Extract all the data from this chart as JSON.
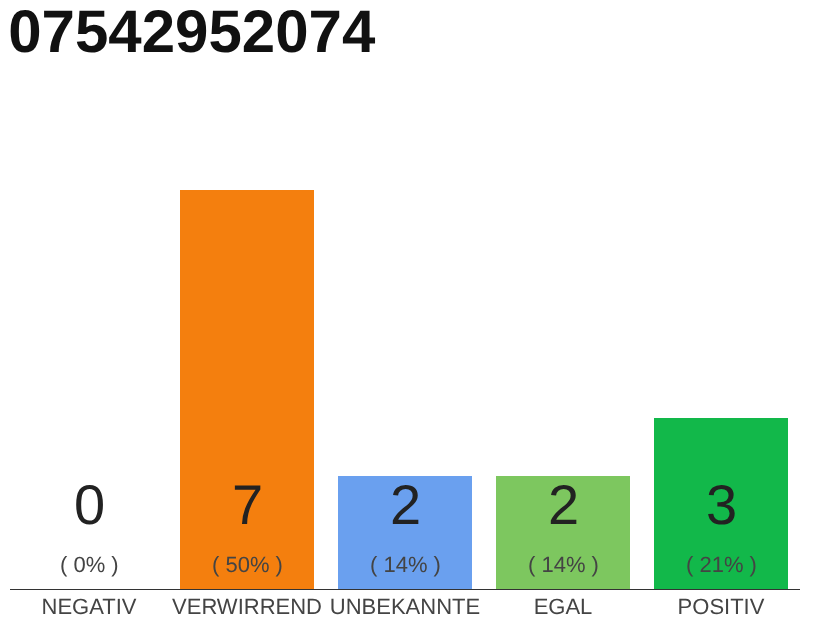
{
  "chart_data": {
    "type": "bar",
    "title": "07542952074",
    "categories": [
      "NEGATIV",
      "VERWIRREND",
      "UNBEKANNTE",
      "EGAL",
      "POSITIV"
    ],
    "values": [
      0,
      7,
      2,
      2,
      3
    ],
    "colors": [
      "#d8d8d8",
      "#f47f0e",
      "#6aa0ef",
      "#7dc75f",
      "#12b84a"
    ],
    "value_labels": [
      "0\n( 0% )",
      "7\n( 50% )",
      "2\n( 14% )",
      "2\n( 14% )",
      "3\n( 21% )"
    ],
    "legend": false
  }
}
